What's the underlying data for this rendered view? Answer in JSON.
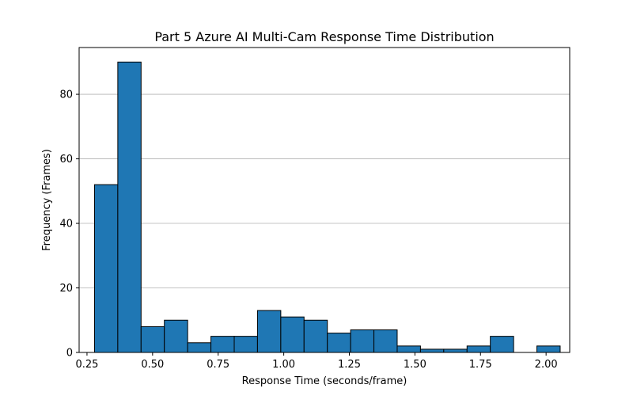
{
  "chart_data": {
    "type": "bar",
    "title": "Part 5 Azure AI Multi-Cam Response Time Distribution",
    "xlabel": "Response Time (seconds/frame)",
    "ylabel": "Frequency (Frames)",
    "xlim": [
      0.22,
      2.09
    ],
    "ylim": [
      0,
      94.5
    ],
    "grid": "y",
    "bar_color": "#1f77b4",
    "edge_color": "#000000",
    "grid_color": "#b0b0b0",
    "xticks": [
      0.25,
      0.5,
      0.75,
      1.0,
      1.25,
      1.5,
      1.75,
      2.0
    ],
    "xtick_labels": [
      "0.25",
      "0.50",
      "0.75",
      "1.00",
      "1.25",
      "1.50",
      "1.75",
      "2.00"
    ],
    "yticks": [
      0,
      20,
      40,
      60,
      80
    ],
    "ytick_labels": [
      "0",
      "20",
      "40",
      "60",
      "80"
    ],
    "bins": [
      {
        "x0": 0.2787,
        "x1": 0.3674,
        "count": 52
      },
      {
        "x0": 0.3674,
        "x1": 0.4562,
        "count": 90
      },
      {
        "x0": 0.4562,
        "x1": 0.5449,
        "count": 8
      },
      {
        "x0": 0.5449,
        "x1": 0.6337,
        "count": 10
      },
      {
        "x0": 0.6337,
        "x1": 0.7224,
        "count": 3
      },
      {
        "x0": 0.7224,
        "x1": 0.8112,
        "count": 5
      },
      {
        "x0": 0.8112,
        "x1": 0.8999,
        "count": 5
      },
      {
        "x0": 0.8999,
        "x1": 0.9887,
        "count": 13
      },
      {
        "x0": 0.9887,
        "x1": 1.0774,
        "count": 11
      },
      {
        "x0": 1.0774,
        "x1": 1.1662,
        "count": 10
      },
      {
        "x0": 1.1662,
        "x1": 1.2549,
        "count": 6
      },
      {
        "x0": 1.2549,
        "x1": 1.3437,
        "count": 7
      },
      {
        "x0": 1.3437,
        "x1": 1.4324,
        "count": 7
      },
      {
        "x0": 1.4324,
        "x1": 1.5212,
        "count": 2
      },
      {
        "x0": 1.5212,
        "x1": 1.6099,
        "count": 1
      },
      {
        "x0": 1.6099,
        "x1": 1.6987,
        "count": 1
      },
      {
        "x0": 1.6987,
        "x1": 1.7874,
        "count": 2
      },
      {
        "x0": 1.7874,
        "x1": 1.8762,
        "count": 5
      },
      {
        "x0": 1.8762,
        "x1": 1.9649,
        "count": 0
      },
      {
        "x0": 1.9649,
        "x1": 2.0537,
        "count": 2
      }
    ]
  }
}
